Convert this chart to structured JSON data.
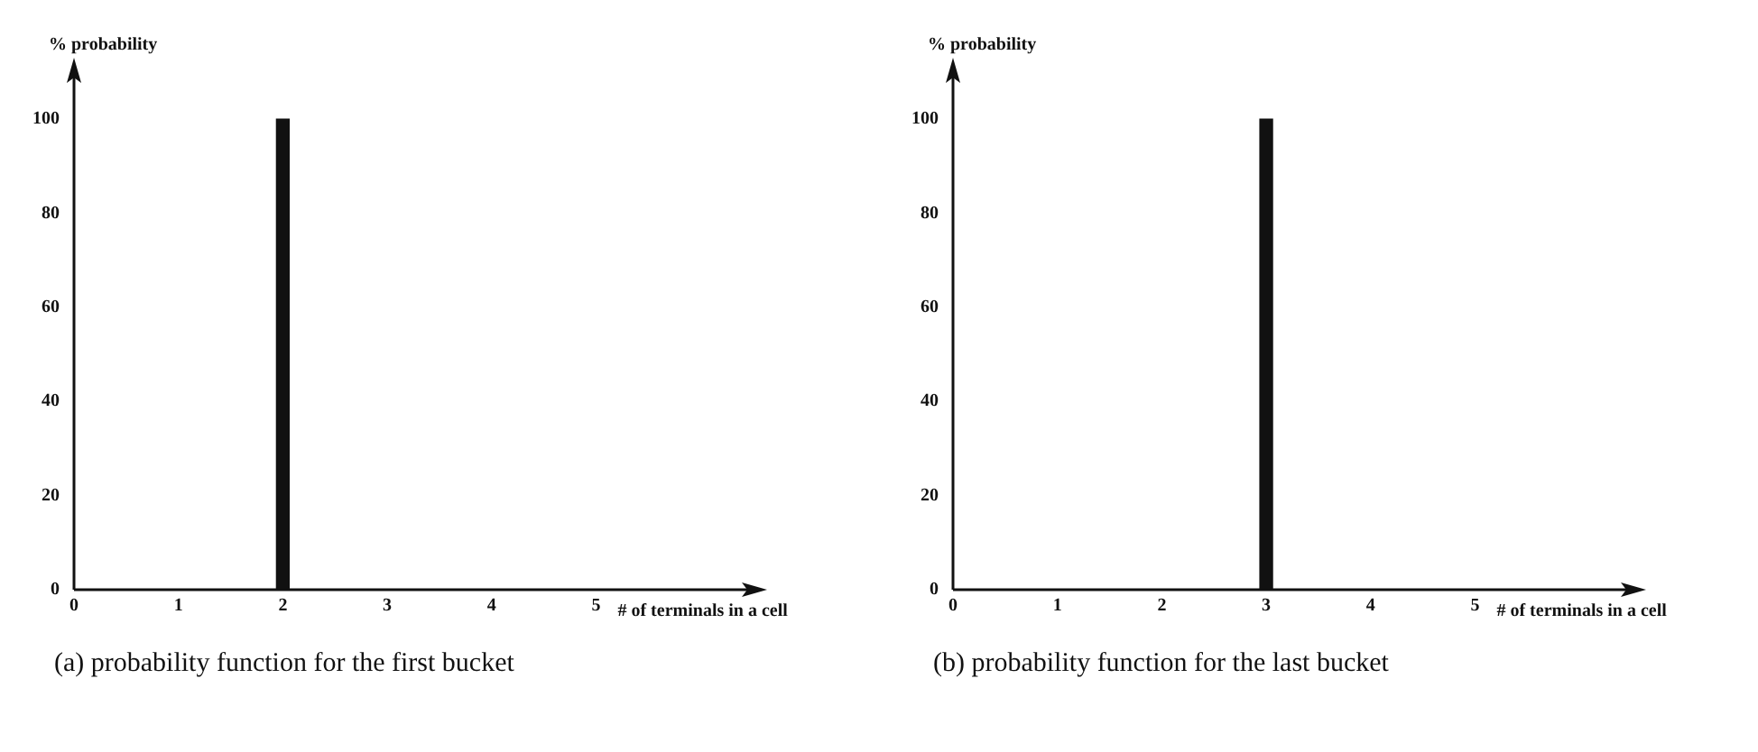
{
  "chart_data": [
    {
      "type": "bar",
      "title": "(a) probability function for the first bucket",
      "xlabel": "# of terminals in a cell",
      "ylabel": "% probability",
      "x": [
        0,
        1,
        2,
        3,
        4,
        5
      ],
      "values": [
        0,
        0,
        100,
        0,
        0,
        0
      ],
      "color": "#111111",
      "xlim": [
        0,
        6.5
      ],
      "xticks": [
        0,
        1,
        2,
        3,
        4,
        5
      ],
      "ylim": [
        0,
        110
      ],
      "yticks": [
        0,
        20,
        40,
        60,
        80,
        100
      ],
      "grid": false,
      "legend": false
    },
    {
      "type": "bar",
      "title": "(b) probability function for the last bucket",
      "xlabel": "# of terminals in a cell",
      "ylabel": "% probability",
      "x": [
        0,
        1,
        2,
        3,
        4,
        5
      ],
      "values": [
        0,
        0,
        0,
        100,
        0,
        0
      ],
      "color": "#111111",
      "xlim": [
        0,
        6.5
      ],
      "xticks": [
        0,
        1,
        2,
        3,
        4,
        5
      ],
      "ylim": [
        0,
        110
      ],
      "yticks": [
        0,
        20,
        40,
        60,
        80,
        100
      ],
      "grid": false,
      "legend": false
    }
  ]
}
